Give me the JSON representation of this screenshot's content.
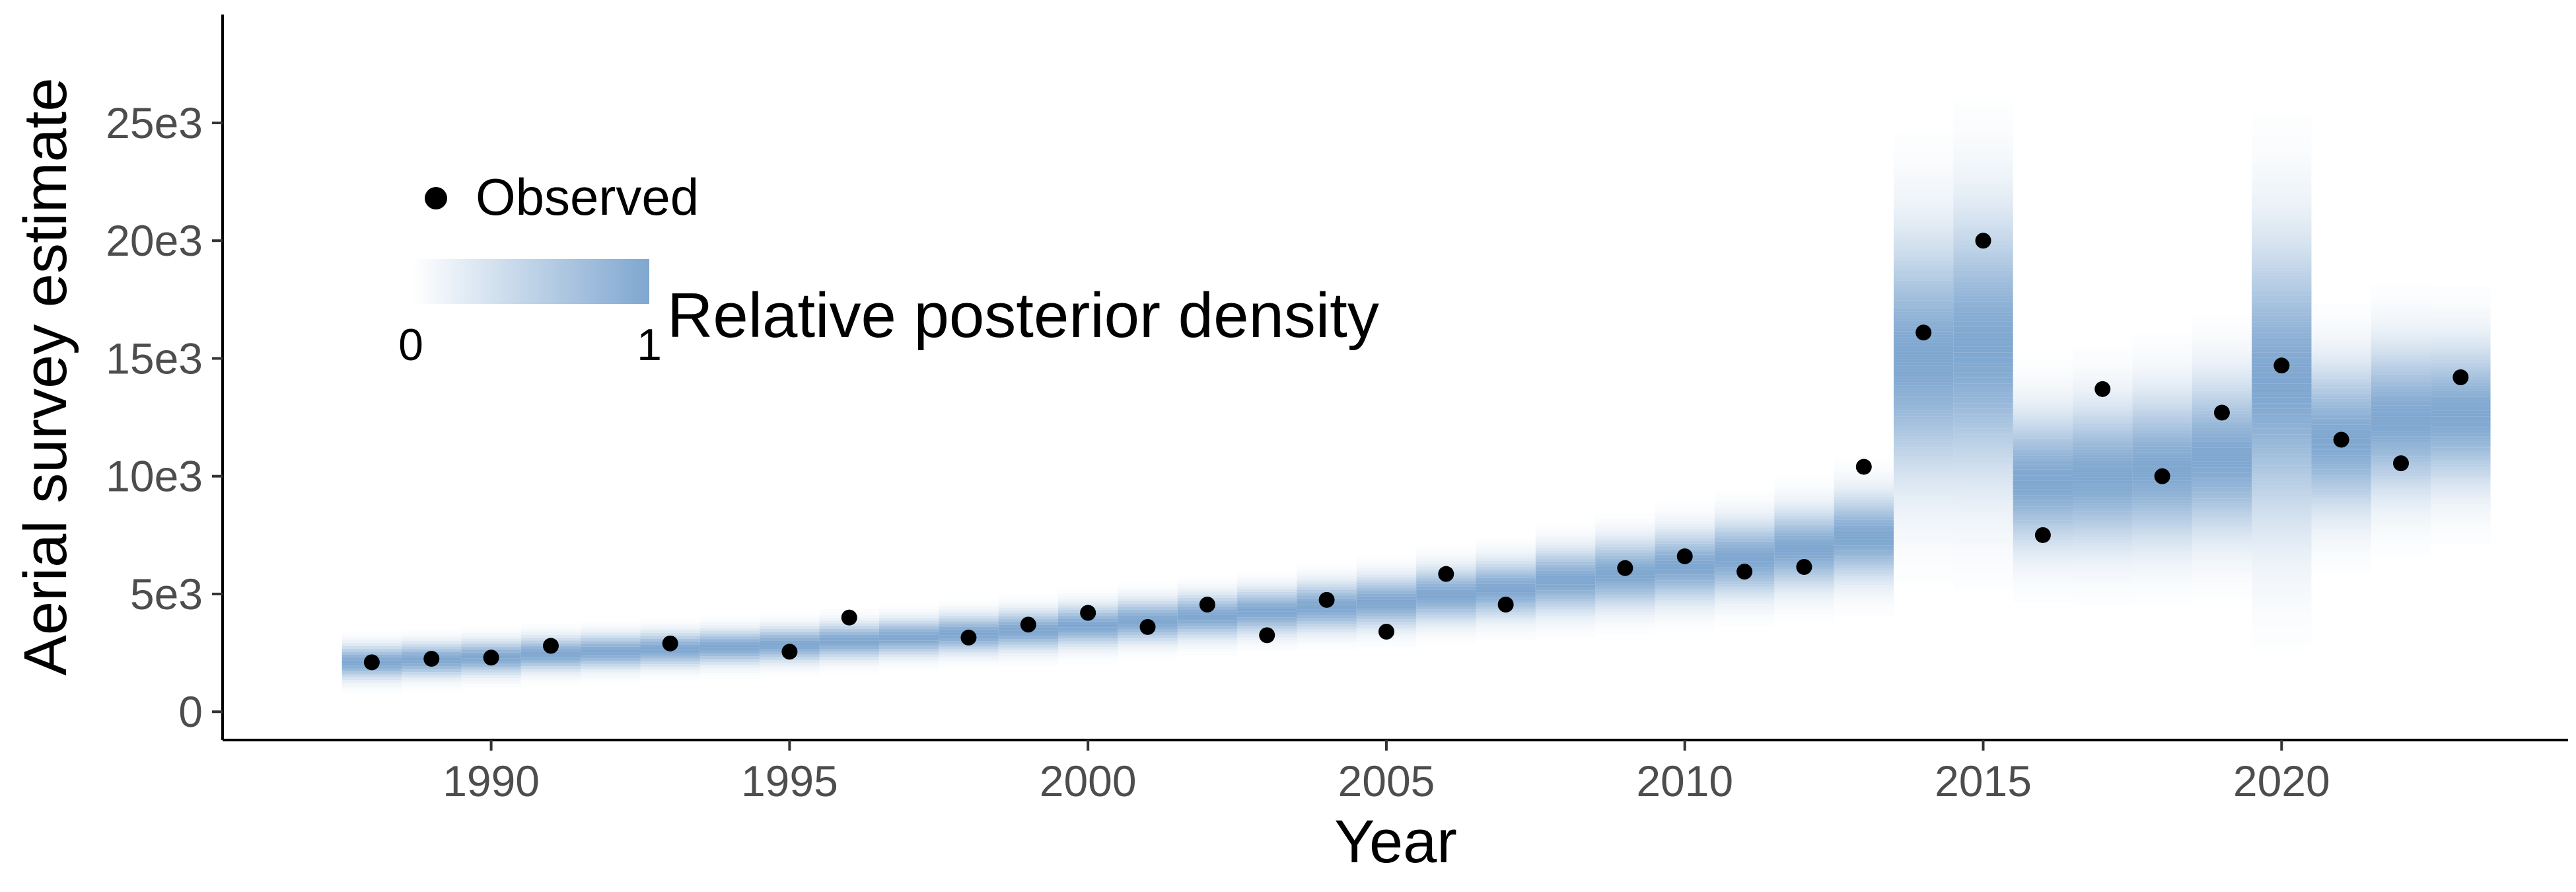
{
  "chart_data": {
    "type": "scatter",
    "xlabel": "Year",
    "ylabel": "Aerial survey estimate",
    "xlim": [
      1985.5,
      2024.8
    ],
    "ylim": [
      -1200,
      29600
    ],
    "x_ticks": [
      1990,
      1995,
      2000,
      2005,
      2010,
      2015,
      2020
    ],
    "x_tick_labels": [
      "1990",
      "1995",
      "2000",
      "2005",
      "2010",
      "2015",
      "2020"
    ],
    "y_ticks": [
      0,
      5000,
      10000,
      15000,
      20000,
      25000
    ],
    "y_tick_labels": [
      "0",
      "5e3",
      "10e3",
      "15e3",
      "20e3",
      "25e3"
    ],
    "grid": false,
    "legend_position": "top-left",
    "observed": {
      "name": "Observed",
      "color": "#000000",
      "x": [
        1988,
        1989,
        1990,
        1991,
        1993,
        1995,
        1996,
        1998,
        1999,
        2000,
        2001,
        2002,
        2003,
        2004,
        2005,
        2006,
        2007,
        2009,
        2010,
        2011,
        2012,
        2013,
        2014,
        2015,
        2016,
        2017,
        2018,
        2019,
        2020,
        2021,
        2022,
        2023
      ],
      "y": [
        2100,
        2250,
        2300,
        2800,
        2900,
        2550,
        4000,
        3150,
        3700,
        4200,
        3600,
        4550,
        3250,
        4750,
        3400,
        5850,
        4550,
        6100,
        6600,
        5950,
        6150,
        10400,
        16100,
        20000,
        7500,
        13700,
        10000,
        12700,
        14700,
        11550,
        10550,
        14200
      ]
    },
    "posterior_density": {
      "name": "Relative posterior density",
      "color": "#7fa7d0",
      "scale_min_label": "0",
      "scale_max_label": "1",
      "years": [
        1988,
        1989,
        1990,
        1991,
        1992,
        1993,
        1994,
        1995,
        1996,
        1997,
        1998,
        1999,
        2000,
        2001,
        2002,
        2003,
        2004,
        2005,
        2006,
        2007,
        2008,
        2009,
        2010,
        2011,
        2012,
        2013,
        2014,
        2015,
        2016,
        2017,
        2018,
        2019,
        2020,
        2021,
        2022,
        2023
      ],
      "center": [
        2100,
        2200,
        2300,
        2450,
        2550,
        2650,
        2750,
        2850,
        3000,
        3150,
        3300,
        3450,
        3650,
        3850,
        4050,
        4250,
        4450,
        4650,
        4950,
        5200,
        5550,
        5850,
        6150,
        6500,
        6900,
        7400,
        15000,
        15500,
        9800,
        10000,
        10300,
        10800,
        14000,
        11600,
        12400,
        12600
      ],
      "spread": [
        450,
        450,
        450,
        450,
        450,
        450,
        450,
        460,
        470,
        480,
        500,
        520,
        540,
        560,
        580,
        600,
        640,
        680,
        720,
        760,
        850,
        900,
        950,
        1000,
        1050,
        1150,
        3300,
        3600,
        1800,
        1900,
        2000,
        2100,
        3900,
        2000,
        2000,
        1900
      ]
    }
  }
}
